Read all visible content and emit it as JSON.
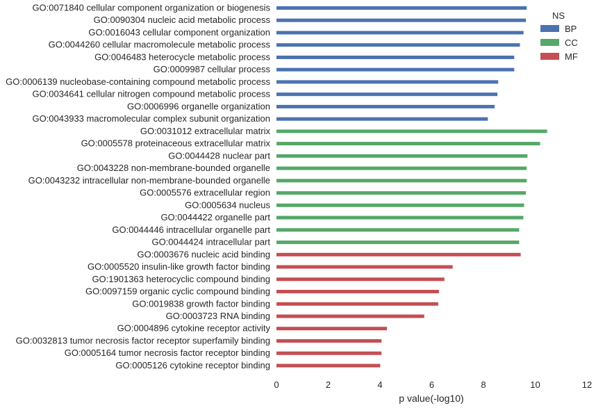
{
  "chart_data": {
    "type": "bar",
    "orientation": "horizontal",
    "title": "",
    "xlabel": "p value(-log10)",
    "ylabel": "",
    "xlim": [
      0,
      12
    ],
    "xticks": [
      "0",
      "2",
      "4",
      "6",
      "8",
      "10",
      "12"
    ],
    "grid": false,
    "legend": {
      "title": "NS",
      "placement": "top-right",
      "entries": [
        {
          "name": "BP",
          "color": "#4c72b0"
        },
        {
          "name": "CC",
          "color": "#55a868"
        },
        {
          "name": "MF",
          "color": "#c44e52"
        }
      ]
    },
    "bars": [
      {
        "label": "GO:0071840 cellular component organization or biogenesis",
        "value": 9.67,
        "ns": "BP"
      },
      {
        "label": "GO:0090304 nucleic acid metabolic process",
        "value": 9.64,
        "ns": "BP"
      },
      {
        "label": "GO:0016043 cellular component organization",
        "value": 9.55,
        "ns": "BP"
      },
      {
        "label": "GO:0044260 cellular macromolecule metabolic process",
        "value": 9.41,
        "ns": "BP"
      },
      {
        "label": "GO:0046483 heterocycle metabolic process",
        "value": 9.19,
        "ns": "BP"
      },
      {
        "label": "GO:0009987 cellular process",
        "value": 9.19,
        "ns": "BP"
      },
      {
        "label": "GO:0006139 nucleobase-containing compound metabolic process",
        "value": 8.57,
        "ns": "BP"
      },
      {
        "label": "GO:0034641 cellular nitrogen compound metabolic process",
        "value": 8.54,
        "ns": "BP"
      },
      {
        "label": "GO:0006996 organelle organization",
        "value": 8.43,
        "ns": "BP"
      },
      {
        "label": "GO:0043933 macromolecular complex subunit organization",
        "value": 8.17,
        "ns": "BP"
      },
      {
        "label": "GO:0031012 extracellular matrix",
        "value": 10.46,
        "ns": "CC"
      },
      {
        "label": "GO:0005578 proteinaceous extracellular matrix",
        "value": 10.19,
        "ns": "CC"
      },
      {
        "label": "GO:0044428 nuclear part",
        "value": 9.7,
        "ns": "CC"
      },
      {
        "label": "GO:0043228 non-membrane-bounded organelle",
        "value": 9.67,
        "ns": "CC"
      },
      {
        "label": "GO:0043232 intracellular non-membrane-bounded organelle",
        "value": 9.67,
        "ns": "CC"
      },
      {
        "label": "GO:0005576 extracellular region",
        "value": 9.64,
        "ns": "CC"
      },
      {
        "label": "GO:0005634 nucleus",
        "value": 9.57,
        "ns": "CC"
      },
      {
        "label": "GO:0044422 organelle part",
        "value": 9.54,
        "ns": "CC"
      },
      {
        "label": "GO:0044446 intracellular organelle part",
        "value": 9.38,
        "ns": "CC"
      },
      {
        "label": "GO:0044424 intracellular part",
        "value": 9.38,
        "ns": "CC"
      },
      {
        "label": "GO:0003676 nucleic acid binding",
        "value": 9.44,
        "ns": "MF"
      },
      {
        "label": "GO:0005520 insulin-like growth factor binding",
        "value": 6.81,
        "ns": "MF"
      },
      {
        "label": "GO:1901363 heterocyclic compound binding",
        "value": 6.49,
        "ns": "MF"
      },
      {
        "label": "GO:0097159 organic cyclic compound binding",
        "value": 6.28,
        "ns": "MF"
      },
      {
        "label": "GO:0019838 growth factor binding",
        "value": 6.25,
        "ns": "MF"
      },
      {
        "label": "GO:0003723 RNA binding",
        "value": 5.71,
        "ns": "MF"
      },
      {
        "label": "GO:0004896 cytokine receptor activity",
        "value": 4.27,
        "ns": "MF"
      },
      {
        "label": "GO:0032813 tumor necrosis factor receptor superfamily binding",
        "value": 4.06,
        "ns": "MF"
      },
      {
        "label": "GO:0005164 tumor necrosis factor receptor binding",
        "value": 4.06,
        "ns": "MF"
      },
      {
        "label": "GO:0005126 cytokine receptor binding",
        "value": 4.01,
        "ns": "MF"
      }
    ]
  }
}
